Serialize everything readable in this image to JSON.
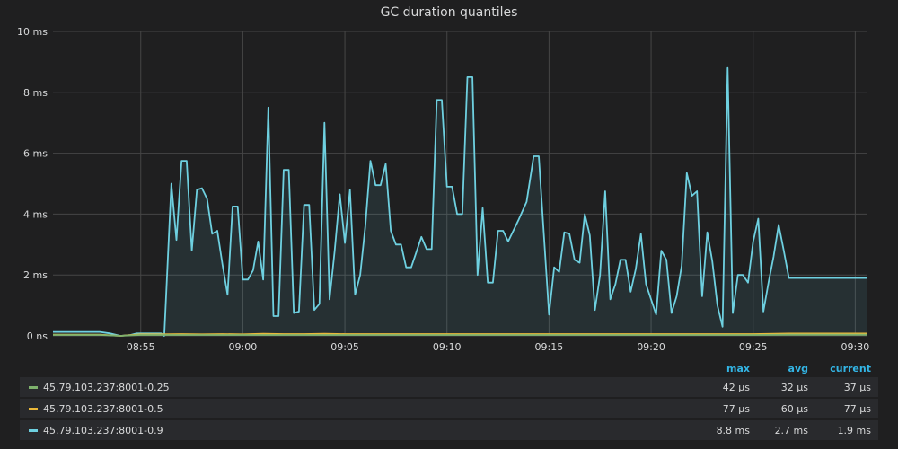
{
  "panel": {
    "title": "GC duration quantiles"
  },
  "legend": {
    "headers": {
      "max": "max",
      "avg": "avg",
      "current": "current"
    },
    "rows": [
      {
        "name": "45.79.103.237:8001-0.25",
        "color": "#7eb26d",
        "max": "42 µs",
        "avg": "32 µs",
        "current": "37 µs"
      },
      {
        "name": "45.79.103.237:8001-0.5",
        "color": "#eab839",
        "max": "77 µs",
        "avg": "60 µs",
        "current": "77 µs"
      },
      {
        "name": "45.79.103.237:8001-0.9",
        "color": "#6ed0e0",
        "max": "8.8 ms",
        "avg": "2.7 ms",
        "current": "1.9 ms"
      }
    ]
  },
  "chart_data": {
    "type": "area",
    "title": "GC duration quantiles",
    "xlabel": "",
    "ylabel": "",
    "y_ticks": [
      "0 ns",
      "2 ms",
      "4 ms",
      "6 ms",
      "8 ms",
      "10 ms"
    ],
    "ylim": [
      0,
      10
    ],
    "y_unit": "ms",
    "x_ticks": [
      "08:55",
      "09:00",
      "09:05",
      "09:10",
      "09:15",
      "09:20",
      "09:25",
      "09:30"
    ],
    "x_ticks_minutes": [
      0,
      5,
      10,
      15,
      20,
      25,
      30,
      35
    ],
    "xlim_minutes": [
      -4.3,
      35.6
    ],
    "grid": true,
    "series": [
      {
        "name": "45.79.103.237:8001-0.9",
        "color": "#6ed0e0",
        "points": [
          [
            -4.3,
            0.13
          ],
          [
            -3.0,
            0.13
          ],
          [
            -2.0,
            0.13
          ],
          [
            -1.5,
            0.08
          ],
          [
            -1.0,
            0
          ],
          [
            -0.5,
            0.03
          ],
          [
            -0.2,
            0.08
          ],
          [
            0.0,
            0.08
          ],
          [
            0.5,
            0.08
          ],
          [
            0.8,
            0.08
          ],
          [
            1.0,
            0.08
          ],
          [
            1.15,
            0
          ],
          [
            1.5,
            5.0
          ],
          [
            1.75,
            3.15
          ],
          [
            2.0,
            5.75
          ],
          [
            2.25,
            5.75
          ],
          [
            2.5,
            2.8
          ],
          [
            2.75,
            4.8
          ],
          [
            3.0,
            4.85
          ],
          [
            3.25,
            4.5
          ],
          [
            3.5,
            3.35
          ],
          [
            3.75,
            3.45
          ],
          [
            4.0,
            2.35
          ],
          [
            4.25,
            1.35
          ],
          [
            4.5,
            4.25
          ],
          [
            4.75,
            4.25
          ],
          [
            5.0,
            1.85
          ],
          [
            5.25,
            1.85
          ],
          [
            5.5,
            2.15
          ],
          [
            5.75,
            3.1
          ],
          [
            6.0,
            1.85
          ],
          [
            6.25,
            7.5
          ],
          [
            6.5,
            0.65
          ],
          [
            6.75,
            0.65
          ],
          [
            7.0,
            5.45
          ],
          [
            7.25,
            5.45
          ],
          [
            7.5,
            0.75
          ],
          [
            7.75,
            0.8
          ],
          [
            8.0,
            4.3
          ],
          [
            8.25,
            4.3
          ],
          [
            8.5,
            0.85
          ],
          [
            8.75,
            1.05
          ],
          [
            9.0,
            7.0
          ],
          [
            9.25,
            1.2
          ],
          [
            9.5,
            2.8
          ],
          [
            9.75,
            4.65
          ],
          [
            10.0,
            3.05
          ],
          [
            10.25,
            4.8
          ],
          [
            10.5,
            1.35
          ],
          [
            10.75,
            2.0
          ],
          [
            11.0,
            3.6
          ],
          [
            11.25,
            5.75
          ],
          [
            11.5,
            4.95
          ],
          [
            11.75,
            4.95
          ],
          [
            12.0,
            5.65
          ],
          [
            12.25,
            3.45
          ],
          [
            12.5,
            3.0
          ],
          [
            12.75,
            3.0
          ],
          [
            13.0,
            2.25
          ],
          [
            13.25,
            2.25
          ],
          [
            13.5,
            2.75
          ],
          [
            13.75,
            3.25
          ],
          [
            14.0,
            2.85
          ],
          [
            14.25,
            2.85
          ],
          [
            14.5,
            7.75
          ],
          [
            14.75,
            7.75
          ],
          [
            15.0,
            4.9
          ],
          [
            15.25,
            4.9
          ],
          [
            15.5,
            4.0
          ],
          [
            15.75,
            4.0
          ],
          [
            16.0,
            8.5
          ],
          [
            16.25,
            8.5
          ],
          [
            16.5,
            2.0
          ],
          [
            16.75,
            4.2
          ],
          [
            17.0,
            1.75
          ],
          [
            17.25,
            1.75
          ],
          [
            17.5,
            3.45
          ],
          [
            17.75,
            3.45
          ],
          [
            18.0,
            3.1
          ],
          [
            18.5,
            3.8
          ],
          [
            18.9,
            4.4
          ],
          [
            19.25,
            5.9
          ],
          [
            19.5,
            5.9
          ],
          [
            20.0,
            0.7
          ],
          [
            20.25,
            2.25
          ],
          [
            20.5,
            2.1
          ],
          [
            20.75,
            3.4
          ],
          [
            21.0,
            3.35
          ],
          [
            21.25,
            2.5
          ],
          [
            21.5,
            2.4
          ],
          [
            21.75,
            4.0
          ],
          [
            22.0,
            3.3
          ],
          [
            22.25,
            0.85
          ],
          [
            22.5,
            2.0
          ],
          [
            22.75,
            4.75
          ],
          [
            23.0,
            1.2
          ],
          [
            23.25,
            1.7
          ],
          [
            23.5,
            2.5
          ],
          [
            23.75,
            2.5
          ],
          [
            24.0,
            1.45
          ],
          [
            24.25,
            2.2
          ],
          [
            24.5,
            3.35
          ],
          [
            24.75,
            1.7
          ],
          [
            25.0,
            1.2
          ],
          [
            25.25,
            0.7
          ],
          [
            25.5,
            2.8
          ],
          [
            25.75,
            2.5
          ],
          [
            26.0,
            0.75
          ],
          [
            26.25,
            1.3
          ],
          [
            26.5,
            2.3
          ],
          [
            26.75,
            5.35
          ],
          [
            27.0,
            4.6
          ],
          [
            27.25,
            4.75
          ],
          [
            27.5,
            1.3
          ],
          [
            27.75,
            3.4
          ],
          [
            28.0,
            2.45
          ],
          [
            28.25,
            1.0
          ],
          [
            28.5,
            0.3
          ],
          [
            28.75,
            8.8
          ],
          [
            29.0,
            0.75
          ],
          [
            29.25,
            2.0
          ],
          [
            29.5,
            2.0
          ],
          [
            29.75,
            1.75
          ],
          [
            30.0,
            3.1
          ],
          [
            30.25,
            3.85
          ],
          [
            30.5,
            0.8
          ],
          [
            30.75,
            1.75
          ],
          [
            31.0,
            2.6
          ],
          [
            31.25,
            3.65
          ],
          [
            31.5,
            2.8
          ],
          [
            31.75,
            1.9
          ],
          [
            32.5,
            1.9
          ],
          [
            33.0,
            1.9
          ],
          [
            34.0,
            1.9
          ],
          [
            35.6,
            1.9
          ]
        ]
      },
      {
        "name": "45.79.103.237:8001-0.5",
        "color": "#eab839",
        "points": [
          [
            -4.3,
            0.04
          ],
          [
            -2.0,
            0.04
          ],
          [
            -1.0,
            0.0
          ],
          [
            0.0,
            0.05
          ],
          [
            1.0,
            0.05
          ],
          [
            2.0,
            0.06
          ],
          [
            3.0,
            0.05
          ],
          [
            4.0,
            0.06
          ],
          [
            5.0,
            0.05
          ],
          [
            6.0,
            0.07
          ],
          [
            7.0,
            0.06
          ],
          [
            8.0,
            0.06
          ],
          [
            9.0,
            0.07
          ],
          [
            10.0,
            0.06
          ],
          [
            12.0,
            0.06
          ],
          [
            14.0,
            0.06
          ],
          [
            16.0,
            0.06
          ],
          [
            18.0,
            0.06
          ],
          [
            20.0,
            0.06
          ],
          [
            22.0,
            0.06
          ],
          [
            24.0,
            0.06
          ],
          [
            26.0,
            0.06
          ],
          [
            28.0,
            0.06
          ],
          [
            30.0,
            0.06
          ],
          [
            31.75,
            0.077
          ],
          [
            35.6,
            0.077
          ]
        ]
      },
      {
        "name": "45.79.103.237:8001-0.25",
        "color": "#7eb26d",
        "points": [
          [
            -4.3,
            0.03
          ],
          [
            -2.0,
            0.03
          ],
          [
            -1.0,
            0.0
          ],
          [
            0.0,
            0.03
          ],
          [
            5.0,
            0.03
          ],
          [
            10.0,
            0.03
          ],
          [
            15.0,
            0.03
          ],
          [
            20.0,
            0.03
          ],
          [
            25.0,
            0.03
          ],
          [
            30.0,
            0.03
          ],
          [
            31.75,
            0.037
          ],
          [
            35.6,
            0.037
          ]
        ]
      }
    ]
  }
}
